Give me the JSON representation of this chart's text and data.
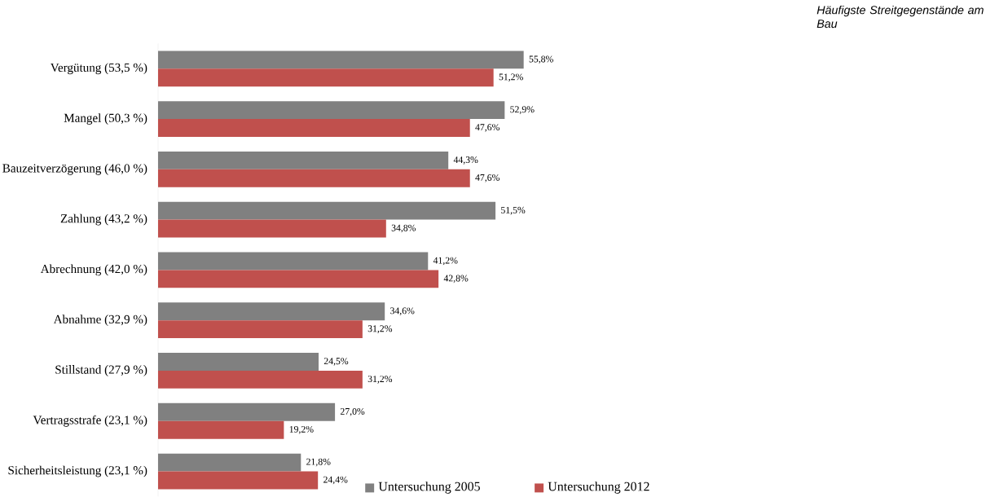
{
  "chart_data": {
    "type": "bar",
    "orientation": "horizontal",
    "title": "Häufigste Streitgegenstände am Bau",
    "categories": [
      "Vergütung (53,5 %)",
      "Mangel (50,3 %)",
      "Bauzeitverzögerung (46,0 %)",
      "Zahlung (43,2 %)",
      "Abrechnung (42,0 %)",
      "Abnahme (32,9 %)",
      "Stillstand (27,9 %)",
      "Vertragsstrafe (23,1 %)",
      "Sicherheitsleistung (23,1 %)"
    ],
    "series": [
      {
        "name": "Untersuchung 2005",
        "color": "#808080",
        "values": [
          55.8,
          52.9,
          44.3,
          51.5,
          41.2,
          34.6,
          24.5,
          27.0,
          21.8
        ],
        "value_labels": [
          "55,8%",
          "52,9%",
          "44,3%",
          "51,5%",
          "41,2%",
          "34,6%",
          "24,5%",
          "27,0%",
          "21,8%"
        ]
      },
      {
        "name": "Untersuchung 2012",
        "color": "#c0504d",
        "values": [
          51.2,
          47.6,
          47.6,
          34.8,
          42.8,
          31.2,
          31.2,
          19.2,
          24.4
        ],
        "value_labels": [
          "51,2%",
          "47,6%",
          "47,6%",
          "34,8%",
          "42,8%",
          "31,2%",
          "31,2%",
          "19,2%",
          "24,4%"
        ]
      }
    ],
    "legend": "bottom"
  }
}
